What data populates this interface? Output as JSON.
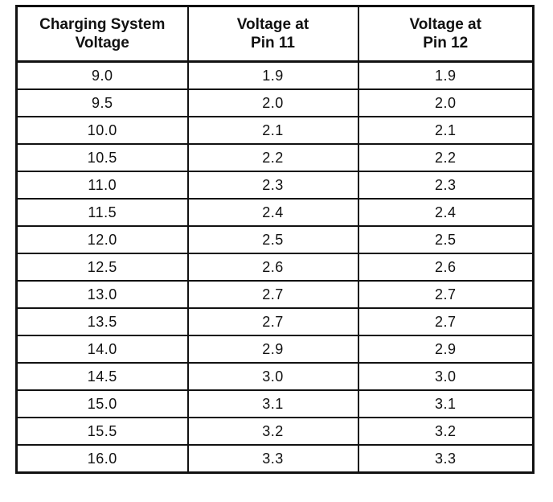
{
  "table": {
    "headers": [
      "Charging System\nVoltage",
      "Voltage at\nPin 11",
      "Voltage at\nPin 12"
    ],
    "rows": [
      [
        "9.0",
        "1.9",
        "1.9"
      ],
      [
        "9.5",
        "2.0",
        "2.0"
      ],
      [
        "10.0",
        "2.1",
        "2.1"
      ],
      [
        "10.5",
        "2.2",
        "2.2"
      ],
      [
        "11.0",
        "2.3",
        "2.3"
      ],
      [
        "11.5",
        "2.4",
        "2.4"
      ],
      [
        "12.0",
        "2.5",
        "2.5"
      ],
      [
        "12.5",
        "2.6",
        "2.6"
      ],
      [
        "13.0",
        "2.7",
        "2.7"
      ],
      [
        "13.5",
        "2.7",
        "2.7"
      ],
      [
        "14.0",
        "2.9",
        "2.9"
      ],
      [
        "14.5",
        "3.0",
        "3.0"
      ],
      [
        "15.0",
        "3.1",
        "3.1"
      ],
      [
        "15.5",
        "3.2",
        "3.2"
      ],
      [
        "16.0",
        "3.3",
        "3.3"
      ]
    ]
  }
}
